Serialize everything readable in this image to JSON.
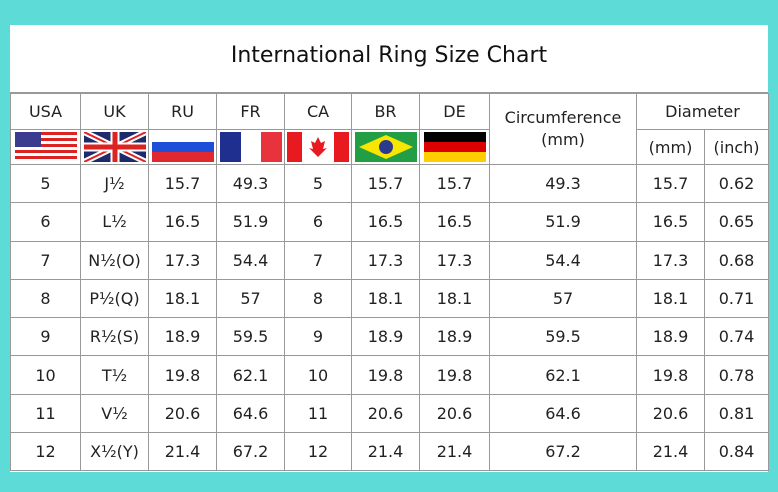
{
  "title": "International Ring Size Chart",
  "headers": [
    "USA",
    "UK",
    "RU",
    "FR",
    "CA",
    "BR",
    "DE"
  ],
  "circumference_header": "Circumference (mm)",
  "diameter_header": "Diameter",
  "diameter_sub": [
    "(mm)",
    "(inch)"
  ],
  "flags": [
    "us-flag-icon",
    "uk-flag-icon",
    "russia-flag-icon",
    "france-flag-icon",
    "canada-flag-icon",
    "brazil-flag-icon",
    "germany-flag-icon"
  ],
  "rows": [
    [
      "5",
      "J½",
      "15.7",
      "49.3",
      "5",
      "15.7",
      "15.7",
      "49.3",
      "15.7",
      "0.62"
    ],
    [
      "6",
      "L½",
      "16.5",
      "51.9",
      "6",
      "16.5",
      "16.5",
      "51.9",
      "16.5",
      "0.65"
    ],
    [
      "7",
      "N½(O)",
      "17.3",
      "54.4",
      "7",
      "17.3",
      "17.3",
      "54.4",
      "17.3",
      "0.68"
    ],
    [
      "8",
      "P½(Q)",
      "18.1",
      "57",
      "8",
      "18.1",
      "18.1",
      "57",
      "18.1",
      "0.71"
    ],
    [
      "9",
      "R½(S)",
      "18.9",
      "59.5",
      "9",
      "18.9",
      "18.9",
      "59.5",
      "18.9",
      "0.74"
    ],
    [
      "10",
      "T½",
      "19.8",
      "62.1",
      "10",
      "19.8",
      "19.8",
      "62.1",
      "19.8",
      "0.78"
    ],
    [
      "11",
      "V½",
      "20.6",
      "64.6",
      "11",
      "20.6",
      "20.6",
      "64.6",
      "20.6",
      "0.81"
    ],
    [
      "12",
      "X½(Y)",
      "21.4",
      "67.2",
      "12",
      "21.4",
      "21.4",
      "67.2",
      "21.4",
      "0.84"
    ]
  ]
}
